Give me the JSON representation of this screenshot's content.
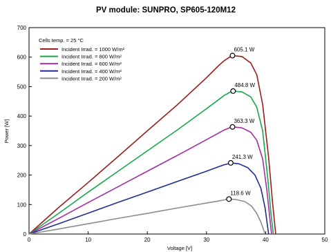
{
  "chart_data": {
    "type": "line",
    "title": "PV module:  SUNPRO,  SP605-120M12",
    "xlabel": "Voltage [V]",
    "ylabel": "Power [W]",
    "xlim": [
      0,
      50
    ],
    "ylim": [
      0,
      700
    ],
    "xticks": [
      0,
      10,
      20,
      30,
      40,
      50
    ],
    "yticks": [
      0,
      100,
      200,
      300,
      400,
      500,
      600,
      700
    ],
    "legend_header": "Cells temp. = 25 °C",
    "legend_position": "top-left",
    "grid": false,
    "series": [
      {
        "name": "Incident Irrad. = 1000 W/m²",
        "color": "#9b1c1c",
        "points": [
          [
            0,
            0
          ],
          [
            5,
            90
          ],
          [
            10,
            175
          ],
          [
            15,
            262
          ],
          [
            20,
            350
          ],
          [
            25,
            437
          ],
          [
            30,
            530
          ],
          [
            32,
            570
          ],
          [
            33,
            588
          ],
          [
            34,
            601
          ],
          [
            34.4,
            605.1
          ],
          [
            36,
            602
          ],
          [
            37.5,
            580
          ],
          [
            38.5,
            540
          ],
          [
            39.5,
            440
          ],
          [
            40.5,
            260
          ],
          [
            41.2,
            100
          ],
          [
            41.7,
            0
          ]
        ],
        "mpp": [
          34.4,
          605.1
        ],
        "mpp_label": "605.1 W"
      },
      {
        "name": "Incident Irrad. = 800 W/m²",
        "color": "#13a84a",
        "points": [
          [
            0,
            0
          ],
          [
            5,
            70
          ],
          [
            10,
            142
          ],
          [
            15,
            212
          ],
          [
            20,
            282
          ],
          [
            25,
            352
          ],
          [
            30,
            425
          ],
          [
            32,
            455
          ],
          [
            33,
            470
          ],
          [
            34,
            481
          ],
          [
            34.5,
            484.8
          ],
          [
            36,
            482
          ],
          [
            37.5,
            465
          ],
          [
            38.5,
            430
          ],
          [
            39.5,
            350
          ],
          [
            40.3,
            200
          ],
          [
            40.9,
            70
          ],
          [
            41.3,
            0
          ]
        ],
        "mpp": [
          34.5,
          484.8
        ],
        "mpp_label": "484.8 W"
      },
      {
        "name": "Incident Irrad. = 600 W/m²",
        "color": "#a32ca3",
        "points": [
          [
            0,
            0
          ],
          [
            5,
            53
          ],
          [
            10,
            107
          ],
          [
            15,
            160
          ],
          [
            20,
            213
          ],
          [
            25,
            266
          ],
          [
            30,
            320
          ],
          [
            32,
            342
          ],
          [
            33,
            353
          ],
          [
            34,
            361
          ],
          [
            34.4,
            363.3
          ],
          [
            36,
            360
          ],
          [
            37.5,
            345
          ],
          [
            38.5,
            318
          ],
          [
            39.5,
            255
          ],
          [
            40.2,
            150
          ],
          [
            40.7,
            55
          ],
          [
            41,
            0
          ]
        ],
        "mpp": [
          34.4,
          363.3
        ],
        "mpp_label": "363.3 W"
      },
      {
        "name": "Incident Irrad. = 400 W/m²",
        "color": "#1f2c8f",
        "points": [
          [
            0,
            0
          ],
          [
            5,
            35
          ],
          [
            10,
            71
          ],
          [
            15,
            107
          ],
          [
            20,
            142
          ],
          [
            25,
            178
          ],
          [
            30,
            213
          ],
          [
            32,
            228
          ],
          [
            33,
            235
          ],
          [
            34,
            240
          ],
          [
            34.1,
            241.3
          ],
          [
            35.5,
            238
          ],
          [
            37,
            225
          ],
          [
            38.2,
            200
          ],
          [
            39.2,
            155
          ],
          [
            39.9,
            90
          ],
          [
            40.3,
            30
          ],
          [
            40.5,
            0
          ]
        ],
        "mpp": [
          34.1,
          241.3
        ],
        "mpp_label": "241.3 W"
      },
      {
        "name": "Incident Irrad. = 200 W/m²",
        "color": "#8c8c8c",
        "points": [
          [
            0,
            0
          ],
          [
            5,
            17
          ],
          [
            10,
            35
          ],
          [
            15,
            53
          ],
          [
            20,
            70
          ],
          [
            25,
            88
          ],
          [
            30,
            105
          ],
          [
            32,
            112
          ],
          [
            33,
            116
          ],
          [
            33.8,
            118.6
          ],
          [
            35,
            117
          ],
          [
            36.5,
            110
          ],
          [
            37.6,
            95
          ],
          [
            38.5,
            70
          ],
          [
            39.2,
            40
          ],
          [
            39.7,
            12
          ],
          [
            39.9,
            0
          ]
        ],
        "mpp": [
          33.8,
          118.6
        ],
        "mpp_label": "118.6 W"
      }
    ]
  }
}
